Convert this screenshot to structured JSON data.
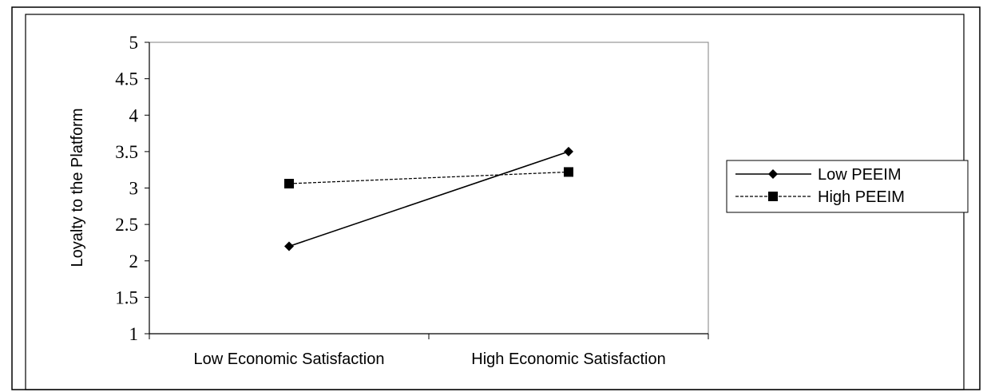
{
  "chart_data": {
    "type": "line",
    "categories": [
      "Low Economic Satisfaction",
      "High Economic Satisfaction"
    ],
    "series": [
      {
        "name": "Low PEEIM",
        "values": [
          2.2,
          3.5
        ],
        "line_style": "solid",
        "marker": "diamond",
        "color": "#000000"
      },
      {
        "name": "High PEEIM",
        "values": [
          3.06,
          3.22
        ],
        "line_style": "dashed",
        "marker": "square",
        "color": "#000000"
      }
    ],
    "title": "",
    "xlabel": "",
    "ylabel": "Loyalty to the Platform",
    "ylim": [
      1,
      5
    ],
    "yticks": [
      "1",
      "1.5",
      "2",
      "2.5",
      "3",
      "3.5",
      "4",
      "4.5",
      "5"
    ],
    "grid": false,
    "legend_position": "right"
  }
}
